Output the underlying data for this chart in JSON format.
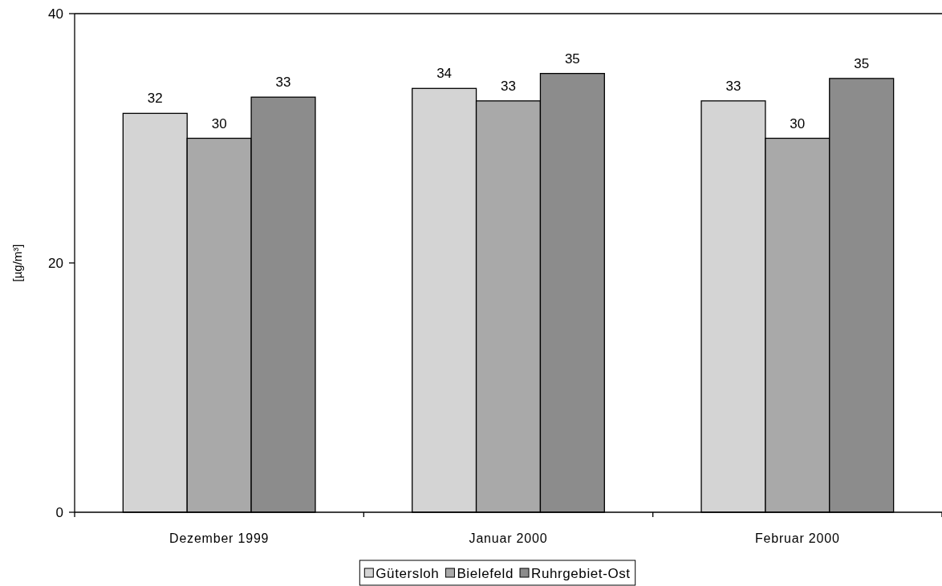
{
  "chart_data": {
    "type": "bar",
    "ylabel": "[µg/m³]",
    "categories": [
      "Dezember 1999",
      "Januar 2000",
      "Februar 2000"
    ],
    "series": [
      {
        "name": "Gütersloh",
        "color": "#d4d4d4",
        "values": [
          32,
          34,
          33
        ],
        "value_labels": [
          "32",
          "34",
          "33"
        ]
      },
      {
        "name": "Bielefeld",
        "color": "#a9a9a9",
        "values": [
          30,
          33,
          30
        ],
        "value_labels": [
          "30",
          "33",
          "30"
        ]
      },
      {
        "name": "Ruhrgebiet-Ost",
        "color": "#8c8c8c",
        "values": [
          33.3,
          35.2,
          34.8
        ],
        "value_labels": [
          "33",
          "35",
          "35"
        ]
      }
    ],
    "ylim": [
      0,
      40
    ],
    "yticks": [
      0,
      20,
      40
    ],
    "legend": "bottom"
  }
}
